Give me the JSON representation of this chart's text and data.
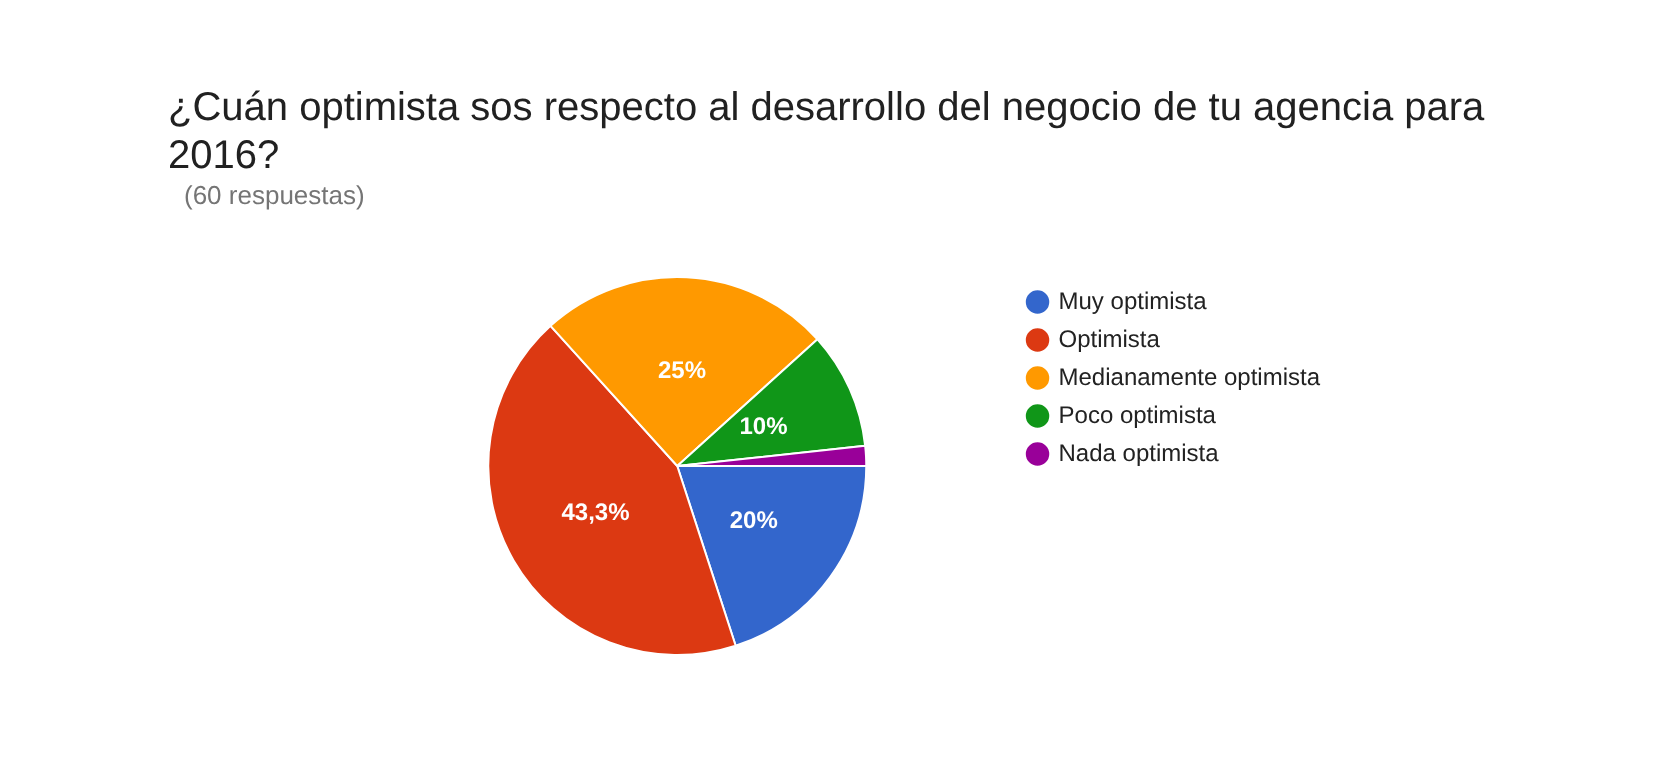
{
  "chart_data": {
    "type": "pie",
    "title": "¿Cuán optimista sos respecto al desarrollo del negocio de tu agencia para 2016?",
    "subtitle": "(60 respuestas)",
    "categories": [
      "Muy optimista",
      "Optimista",
      "Medianamente optimista",
      "Poco optimista",
      "Nada optimista"
    ],
    "values": [
      20,
      43.3,
      25,
      10,
      1.7
    ],
    "colors": [
      "#3366cc",
      "#dc3912",
      "#ff9900",
      "#109618",
      "#990099"
    ],
    "value_labels": [
      "20%",
      "43,3%",
      "25%",
      "10%",
      null
    ],
    "legend": "right"
  }
}
